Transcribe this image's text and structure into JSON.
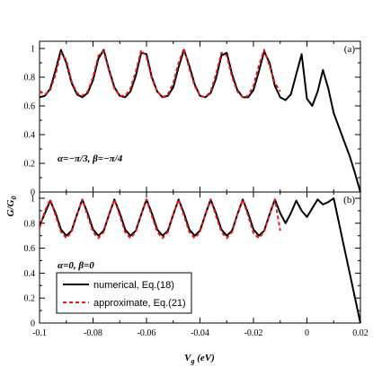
{
  "chart_data": [
    {
      "type": "line",
      "panel_label": "(a)",
      "annotation": "α=−π/3, β=−π/4",
      "xlim": [
        -0.1,
        0.02
      ],
      "ylim": [
        0,
        1.05
      ],
      "yticks": [
        "0",
        "0.2",
        "0.4",
        "0.6",
        "0.8",
        "1"
      ],
      "series": [
        {
          "name": "numerical, Eq.(18)",
          "style": "solid",
          "color": "#000000",
          "x": [
            -0.1,
            -0.098,
            -0.096,
            -0.094,
            -0.092,
            -0.09,
            -0.088,
            -0.086,
            -0.084,
            -0.082,
            -0.08,
            -0.078,
            -0.076,
            -0.074,
            -0.072,
            -0.07,
            -0.068,
            -0.066,
            -0.064,
            -0.062,
            -0.06,
            -0.058,
            -0.056,
            -0.054,
            -0.052,
            -0.05,
            -0.048,
            -0.046,
            -0.044,
            -0.042,
            -0.04,
            -0.038,
            -0.036,
            -0.034,
            -0.032,
            -0.03,
            -0.028,
            -0.026,
            -0.024,
            -0.022,
            -0.02,
            -0.018,
            -0.016,
            -0.014,
            -0.012,
            -0.01,
            -0.008,
            -0.006,
            -0.004,
            -0.002,
            0.0,
            0.002,
            0.004,
            0.006,
            0.008,
            0.01,
            0.012,
            0.014,
            0.016,
            0.018,
            0.02
          ],
          "y": [
            0.66,
            0.67,
            0.72,
            0.85,
            0.99,
            0.9,
            0.76,
            0.68,
            0.66,
            0.69,
            0.78,
            0.93,
            0.99,
            0.85,
            0.73,
            0.67,
            0.66,
            0.7,
            0.81,
            0.97,
            0.96,
            0.8,
            0.7,
            0.66,
            0.67,
            0.73,
            0.87,
            0.99,
            0.88,
            0.75,
            0.67,
            0.66,
            0.69,
            0.79,
            0.95,
            0.97,
            0.82,
            0.71,
            0.66,
            0.66,
            0.71,
            0.84,
            0.98,
            0.9,
            0.74,
            0.66,
            0.64,
            0.68,
            0.82,
            0.96,
            0.65,
            0.6,
            0.7,
            0.85,
            0.72,
            0.55,
            0.45,
            0.35,
            0.25,
            0.13,
            0.0
          ]
        },
        {
          "name": "approximate, Eq.(21)",
          "style": "dashed",
          "color": "#e8191c",
          "x": [
            -0.1,
            -0.098,
            -0.096,
            -0.094,
            -0.092,
            -0.09,
            -0.088,
            -0.086,
            -0.084,
            -0.082,
            -0.08,
            -0.078,
            -0.076,
            -0.074,
            -0.072,
            -0.07,
            -0.068,
            -0.066,
            -0.064,
            -0.062,
            -0.06,
            -0.058,
            -0.056,
            -0.054,
            -0.052,
            -0.05,
            -0.048,
            -0.046,
            -0.044,
            -0.042,
            -0.04,
            -0.038,
            -0.036,
            -0.034,
            -0.032,
            -0.03,
            -0.028,
            -0.026,
            -0.024,
            -0.022,
            -0.02,
            -0.018,
            -0.016,
            -0.014,
            -0.012,
            -0.01
          ],
          "y": [
            0.7,
            0.68,
            0.71,
            0.82,
            0.97,
            0.92,
            0.77,
            0.69,
            0.67,
            0.7,
            0.8,
            0.95,
            0.98,
            0.84,
            0.72,
            0.67,
            0.67,
            0.72,
            0.84,
            0.99,
            0.94,
            0.79,
            0.7,
            0.66,
            0.68,
            0.76,
            0.9,
            1.0,
            0.86,
            0.74,
            0.67,
            0.66,
            0.7,
            0.82,
            0.97,
            0.95,
            0.8,
            0.7,
            0.66,
            0.67,
            0.74,
            0.88,
            0.99,
            0.88,
            0.76,
            0.7
          ]
        }
      ]
    },
    {
      "type": "line",
      "panel_label": "(b)",
      "annotation": "α=0, β=0",
      "xlim": [
        -0.1,
        0.02
      ],
      "ylim": [
        0,
        1.05
      ],
      "yticks": [
        "0",
        "0.2",
        "0.4",
        "0.6",
        "0.8",
        "1"
      ],
      "series": [
        {
          "name": "numerical, Eq.(18)",
          "style": "solid",
          "color": "#000000",
          "x": [
            -0.1,
            -0.098,
            -0.096,
            -0.094,
            -0.092,
            -0.09,
            -0.088,
            -0.086,
            -0.084,
            -0.082,
            -0.08,
            -0.078,
            -0.076,
            -0.074,
            -0.072,
            -0.07,
            -0.068,
            -0.066,
            -0.064,
            -0.062,
            -0.06,
            -0.058,
            -0.056,
            -0.054,
            -0.052,
            -0.05,
            -0.048,
            -0.046,
            -0.044,
            -0.042,
            -0.04,
            -0.038,
            -0.036,
            -0.034,
            -0.032,
            -0.03,
            -0.028,
            -0.026,
            -0.024,
            -0.022,
            -0.02,
            -0.018,
            -0.016,
            -0.014,
            -0.012,
            -0.01,
            -0.008,
            -0.006,
            -0.004,
            -0.002,
            0.0,
            0.002,
            0.004,
            0.006,
            0.008,
            0.01,
            0.012,
            0.014,
            0.016,
            0.018,
            0.02
          ],
          "y": [
            0.78,
            0.88,
            0.98,
            0.88,
            0.75,
            0.7,
            0.74,
            0.87,
            0.99,
            0.88,
            0.75,
            0.7,
            0.74,
            0.87,
            0.99,
            0.88,
            0.75,
            0.7,
            0.74,
            0.87,
            0.99,
            0.88,
            0.75,
            0.7,
            0.74,
            0.87,
            0.99,
            0.88,
            0.75,
            0.7,
            0.74,
            0.87,
            0.99,
            0.88,
            0.75,
            0.7,
            0.74,
            0.87,
            0.99,
            0.88,
            0.75,
            0.7,
            0.74,
            0.87,
            0.99,
            0.88,
            0.8,
            0.88,
            0.98,
            0.9,
            0.85,
            0.92,
            0.99,
            0.95,
            0.97,
            1.0,
            0.8,
            0.6,
            0.4,
            0.2,
            0.0
          ]
        },
        {
          "name": "approximate, Eq.(21)",
          "style": "dashed",
          "color": "#e8191c",
          "x": [
            -0.1,
            -0.098,
            -0.096,
            -0.094,
            -0.092,
            -0.09,
            -0.088,
            -0.086,
            -0.084,
            -0.082,
            -0.08,
            -0.078,
            -0.076,
            -0.074,
            -0.072,
            -0.07,
            -0.068,
            -0.066,
            -0.064,
            -0.062,
            -0.06,
            -0.058,
            -0.056,
            -0.054,
            -0.052,
            -0.05,
            -0.048,
            -0.046,
            -0.044,
            -0.042,
            -0.04,
            -0.038,
            -0.036,
            -0.034,
            -0.032,
            -0.03,
            -0.028,
            -0.026,
            -0.024,
            -0.022,
            -0.02,
            -0.018,
            -0.016,
            -0.014,
            -0.012,
            -0.01
          ],
          "y": [
            0.76,
            0.9,
            0.99,
            0.86,
            0.73,
            0.68,
            0.73,
            0.87,
            0.99,
            0.86,
            0.73,
            0.68,
            0.73,
            0.87,
            0.99,
            0.86,
            0.73,
            0.68,
            0.73,
            0.87,
            0.99,
            0.86,
            0.73,
            0.68,
            0.73,
            0.87,
            0.99,
            0.86,
            0.73,
            0.68,
            0.73,
            0.87,
            0.99,
            0.86,
            0.73,
            0.68,
            0.73,
            0.87,
            0.99,
            0.86,
            0.72,
            0.68,
            0.73,
            0.87,
            0.99,
            0.74
          ]
        }
      ]
    }
  ],
  "xticks": [
    "-0.1",
    "-0.08",
    "-0.06",
    "-0.04",
    "-0.02",
    "0",
    "0.02"
  ],
  "xlabel": "V",
  "xlabel_sub": "g",
  "xlabel_unit": " (eV)",
  "ylabel": "G/G",
  "ylabel_sub": "0",
  "legend": {
    "entries": [
      "numerical, Eq.(18)",
      "approximate, Eq.(21)"
    ]
  }
}
